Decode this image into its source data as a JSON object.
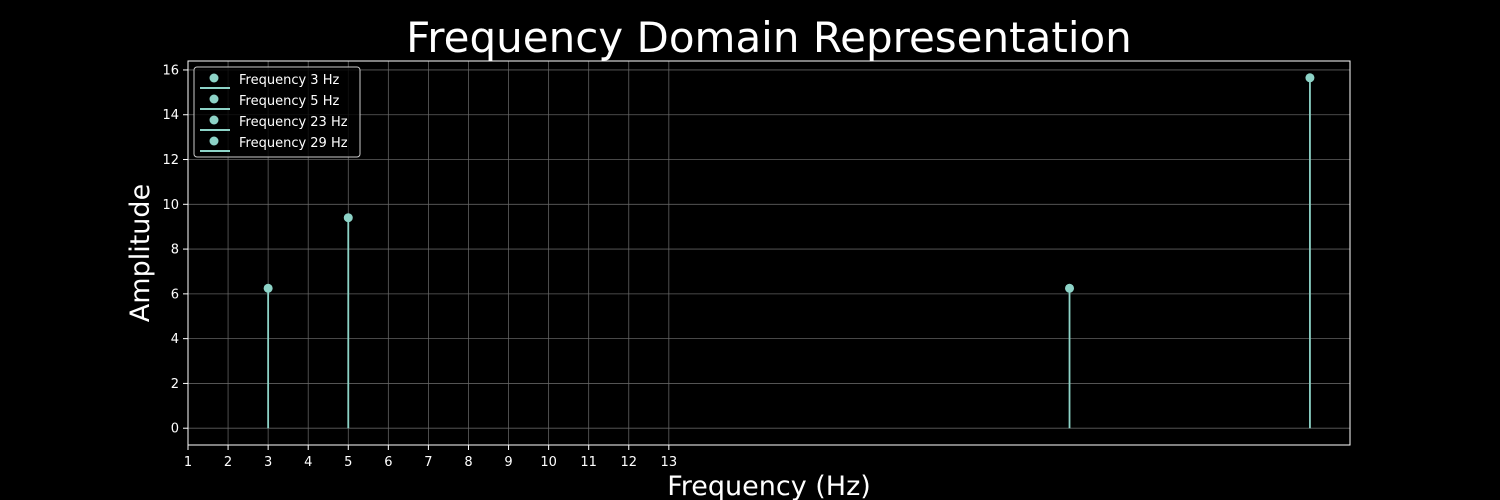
{
  "chart_data": {
    "type": "stem",
    "title": "Frequency Domain Representation",
    "xlabel": "Frequency (Hz)",
    "ylabel": "Amplitude",
    "xlim": [
      1,
      30
    ],
    "ylim": [
      -0.75,
      16.4
    ],
    "x_ticks": [
      1,
      2,
      3,
      4,
      5,
      6,
      7,
      8,
      9,
      10,
      11,
      12,
      13
    ],
    "y_ticks": [
      0,
      2,
      4,
      6,
      8,
      10,
      12,
      14,
      16
    ],
    "grid": true,
    "legend_position": "top-left",
    "series": [
      {
        "name": "Frequency 3 Hz",
        "x": 3,
        "y": 6.25
      },
      {
        "name": "Frequency 5 Hz",
        "x": 5,
        "y": 9.4
      },
      {
        "name": "Frequency 23 Hz",
        "x": 23,
        "y": 6.25
      },
      {
        "name": "Frequency 29 Hz",
        "x": 29,
        "y": 15.65
      }
    ],
    "colors": {
      "background": "#000000",
      "stem": "#8dd3c7",
      "axes": "#ffffff",
      "grid": "#6b6b6b",
      "legend_border": "#cccccc"
    }
  }
}
